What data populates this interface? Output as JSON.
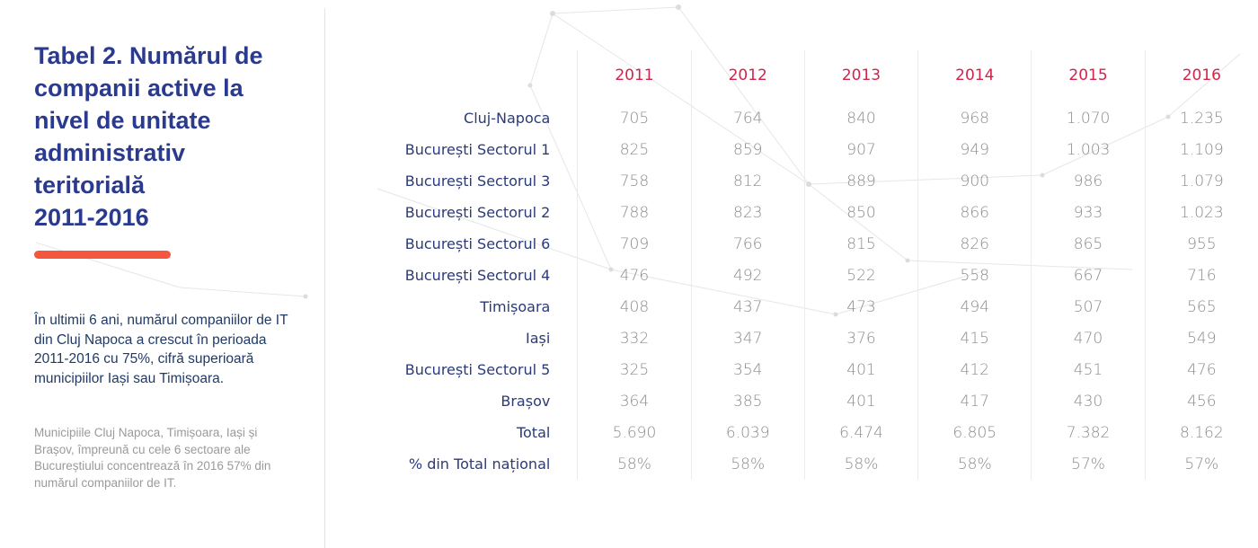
{
  "title": "Tabel 2. Numărul de\ncompanii active la\nnivel de unitate\nadministrativ\nteritorială\n2011-2016",
  "lead_text": "În ultimii 6 ani, numărul companiilor de IT din Cluj Napoca a crescut în perioada 2011-2016 cu 75%, cifră superioară municipiilor Iași sau Timișoara.",
  "note_text": "Municipiile Cluj Napoca, Timișoara, Iași și Brașov, împreună cu cele 6 sectoare ale Bucureștiului concentrează în 2016 57% din numărul companiilor de IT.",
  "colors": {
    "title": "#2a3a8f",
    "accent": "#f4573d",
    "year_header": "#d4234a",
    "values": "#8c8c8c",
    "row_labels": "#2a3a7a"
  },
  "chart_data": {
    "type": "table",
    "columns": [
      "2011",
      "2012",
      "2013",
      "2014",
      "2015",
      "2016"
    ],
    "rows": [
      {
        "label": "Cluj-Napoca",
        "values": [
          "705",
          "764",
          "840",
          "968",
          "1.070",
          "1.235"
        ]
      },
      {
        "label": "București Sectorul 1",
        "values": [
          "825",
          "859",
          "907",
          "949",
          "1.003",
          "1.109"
        ]
      },
      {
        "label": "București Sectorul 3",
        "values": [
          "758",
          "812",
          "889",
          "900",
          "986",
          "1.079"
        ]
      },
      {
        "label": "București Sectorul 2",
        "values": [
          "788",
          "823",
          "850",
          "866",
          "933",
          "1.023"
        ]
      },
      {
        "label": "București Sectorul 6",
        "values": [
          "709",
          "766",
          "815",
          "826",
          "865",
          "955"
        ]
      },
      {
        "label": "București Sectorul 4",
        "values": [
          "476",
          "492",
          "522",
          "558",
          "667",
          "716"
        ]
      },
      {
        "label": "Timișoara",
        "values": [
          "408",
          "437",
          "473",
          "494",
          "507",
          "565"
        ]
      },
      {
        "label": "Iași",
        "values": [
          "332",
          "347",
          "376",
          "415",
          "470",
          "549"
        ]
      },
      {
        "label": "București Sectorul 5",
        "values": [
          "325",
          "354",
          "401",
          "412",
          "451",
          "476"
        ]
      },
      {
        "label": "Brașov",
        "values": [
          "364",
          "385",
          "401",
          "417",
          "430",
          "456"
        ]
      },
      {
        "label": "Total",
        "values": [
          "5.690",
          "6.039",
          "6.474",
          "6.805",
          "7.382",
          "8.162"
        ]
      },
      {
        "label": "% din Total național",
        "values": [
          "58%",
          "58%",
          "58%",
          "58%",
          "57%",
          "57%"
        ]
      }
    ]
  }
}
